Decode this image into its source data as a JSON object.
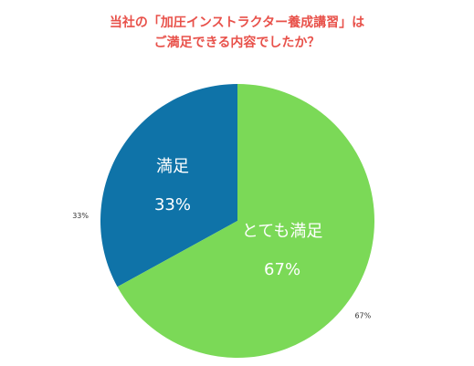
{
  "title_lines": [
    "当社の「加圧インストラクター養成講習」は",
    "ご満足できる内容でしたか？"
  ],
  "colors": {
    "title": "#e8514a",
    "slice_satisfied": "#0f73a8",
    "slice_very_satisfied": "#7bd957",
    "inner_label": "#ffffff",
    "outer_label": "#333333"
  },
  "chart_data": {
    "type": "pie",
    "title": "当社の「加圧インストラクター養成講習」はご満足できる内容でしたか？",
    "slices": [
      {
        "label": "満足",
        "value": 33,
        "value_label": "33%",
        "outer_label": "33%",
        "color": "#0f73a8"
      },
      {
        "label": "とても満足",
        "value": 67,
        "value_label": "67%",
        "outer_label": "67%",
        "color": "#7bd957"
      }
    ],
    "start_angle": "12 o'clock",
    "direction": "counter-clockwise for 満足, clockwise for とても満足",
    "legend": "none"
  }
}
